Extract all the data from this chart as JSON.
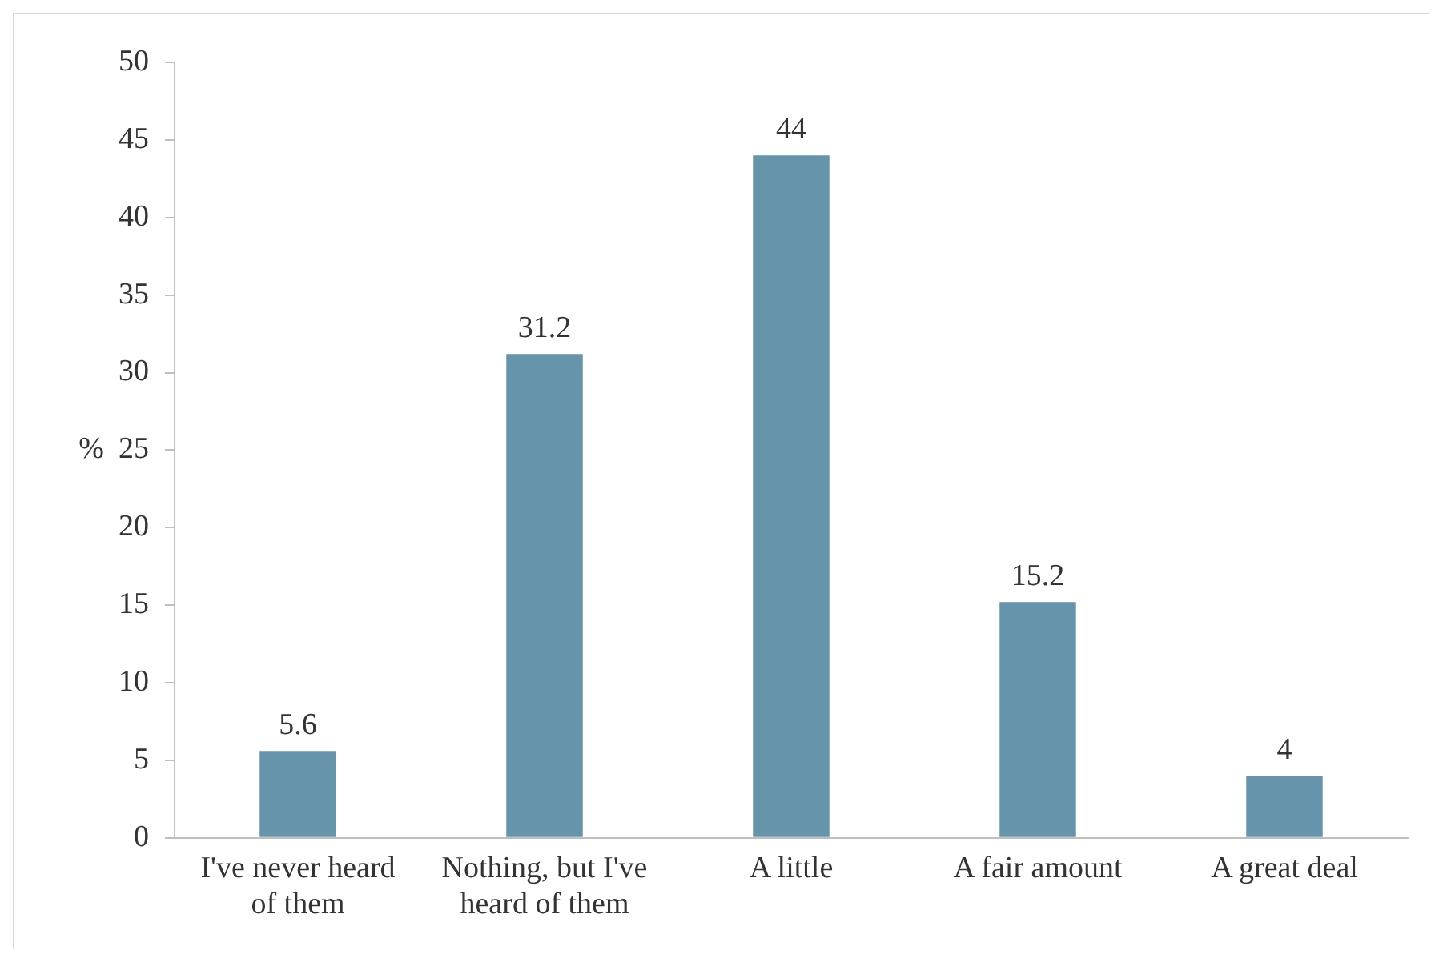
{
  "chart_data": {
    "type": "bar",
    "ylabel": "%",
    "categories": [
      "I've never heard of them",
      "Nothing, but I've heard of them",
      "A little",
      "A fair amount",
      "A great deal"
    ],
    "values": [
      5.6,
      31.2,
      44,
      15.2,
      4
    ],
    "color": "#6694aa",
    "ylim": [
      0,
      50
    ],
    "yticks": [
      0,
      5,
      10,
      15,
      20,
      25,
      30,
      35,
      40,
      45,
      50
    ],
    "grid": false,
    "data_labels": true,
    "legend": false
  }
}
